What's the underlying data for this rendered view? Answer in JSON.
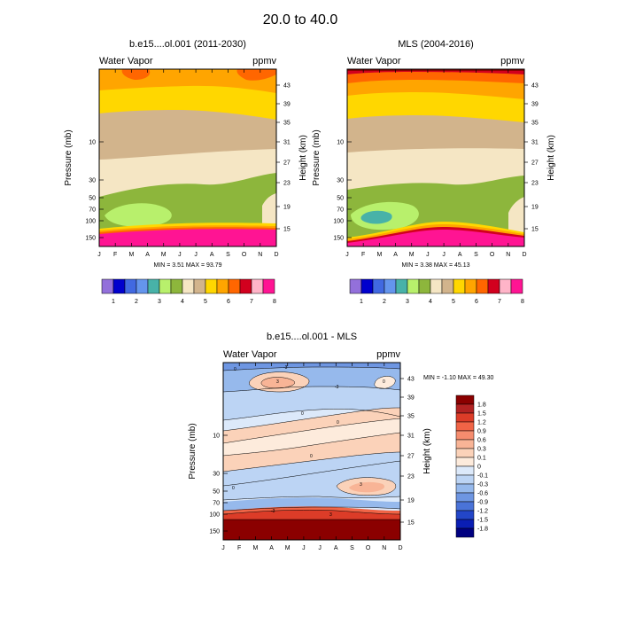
{
  "figure": {
    "title": "20.0 to  40.0"
  },
  "chart_data": [
    {
      "type": "heatmap",
      "title": "b.e15....ol.001 (2011-2030)",
      "left_label": "Water Vapor",
      "right_label": "ppmv",
      "xlabel": "",
      "ylabel": "Pressure (mb)",
      "ylabel_right": "Height (km)",
      "x_ticks": [
        "J",
        "F",
        "M",
        "A",
        "M",
        "J",
        "J",
        "A",
        "S",
        "O",
        "N",
        "D"
      ],
      "y_ticks": [
        "10",
        "30",
        "50",
        "70",
        "100",
        "150"
      ],
      "y_ticks_right": [
        "43",
        "39",
        "35",
        "31",
        "27",
        "23",
        "19",
        "15"
      ],
      "minmax": "MIN =   3.51  MAX =  93.79",
      "colorbar": {
        "labels": [
          "1",
          "2",
          "3",
          "4",
          "5",
          "6",
          "7",
          "8"
        ],
        "colors": [
          "#9370db",
          "#0000cd",
          "#4169e1",
          "#6495ed",
          "#48b2a8",
          "#b8f06c",
          "#8db63c",
          "#f5e6c4",
          "#d2b48c",
          "#ffd700",
          "#ffa500",
          "#ff6600",
          "#d2001e",
          "#ffb4c8",
          "#ff1493"
        ]
      }
    },
    {
      "type": "heatmap",
      "title": "MLS (2004-2016)",
      "left_label": "Water Vapor",
      "right_label": "ppmv",
      "xlabel": "",
      "ylabel": "Pressure (mb)",
      "ylabel_right": "Height (km)",
      "x_ticks": [
        "J",
        "F",
        "M",
        "A",
        "M",
        "J",
        "J",
        "A",
        "S",
        "O",
        "N",
        "D"
      ],
      "y_ticks": [
        "10",
        "30",
        "50",
        "70",
        "100",
        "150"
      ],
      "y_ticks_right": [
        "43",
        "39",
        "35",
        "31",
        "27",
        "23",
        "19",
        "15"
      ],
      "minmax": "MIN =   3.38  MAX =  45.13",
      "colorbar": {
        "labels": [
          "1",
          "2",
          "3",
          "4",
          "5",
          "6",
          "7",
          "8"
        ],
        "colors": [
          "#9370db",
          "#0000cd",
          "#4169e1",
          "#6495ed",
          "#48b2a8",
          "#b8f06c",
          "#8db63c",
          "#f5e6c4",
          "#d2b48c",
          "#ffd700",
          "#ffa500",
          "#ff6600",
          "#d2001e",
          "#ffb4c8",
          "#ff1493"
        ]
      }
    },
    {
      "type": "heatmap",
      "title": "b.e15....ol.001 - MLS",
      "left_label": "Water Vapor",
      "right_label": "ppmv",
      "xlabel": "",
      "ylabel": "Pressure (mb)",
      "ylabel_right": "Height (km)",
      "x_ticks": [
        "J",
        "F",
        "M",
        "A",
        "M",
        "J",
        "J",
        "A",
        "S",
        "O",
        "N",
        "D"
      ],
      "y_ticks": [
        "10",
        "30",
        "50",
        "70",
        "100",
        "150"
      ],
      "y_ticks_right": [
        "43",
        "39",
        "35",
        "31",
        "27",
        "23",
        "19",
        "15"
      ],
      "minmax": "MIN =  -1.10  MAX =  49.30",
      "contour_labels": [
        "0",
        "3",
        "-3"
      ],
      "colorbar": {
        "labels": [
          "1.8",
          "1.5",
          "1.2",
          "0.9",
          "0.6",
          "0.3",
          "0.1",
          "0",
          "-0.1",
          "-0.3",
          "-0.6",
          "-0.9",
          "-1.2",
          "-1.5",
          "-1.8"
        ],
        "colors": [
          "#8b0000",
          "#b22222",
          "#dc3c28",
          "#f06446",
          "#f58c6e",
          "#f8b496",
          "#fbd2b9",
          "#fdebdc",
          "#dce9fa",
          "#bcd4f4",
          "#96b9ec",
          "#6e96e2",
          "#4a73d8",
          "#2346c8",
          "#0a1eb4",
          "#000080"
        ]
      }
    }
  ]
}
